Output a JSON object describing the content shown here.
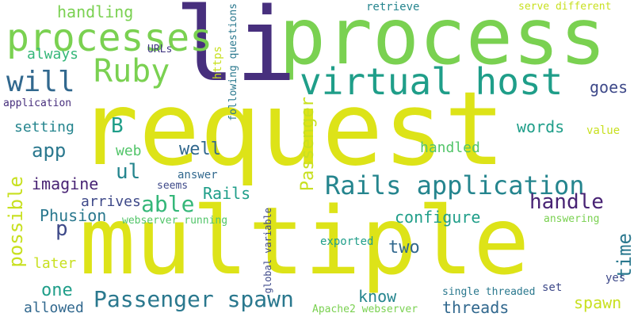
{
  "palette": {
    "lime": "#c8e020",
    "yellow": "#dde318",
    "green_light": "#7ad151",
    "green": "#52c569",
    "teal_green": "#35b779",
    "teal": "#1f9e89",
    "teal_blue": "#25858e",
    "blue": "#2a788e",
    "blue_dark": "#31688e",
    "indigo": "#3e4989",
    "purple": "#443983",
    "purple_dark": "#472f7d",
    "violet": "#482374"
  },
  "words": {
    "request": "request",
    "multiple": "multiple",
    "process": "process",
    "li": "li",
    "processes": "processes",
    "virtual_host": "virtual host",
    "ruby": "Ruby",
    "will": "will",
    "rails_application": "Rails application",
    "passenger_spawn": "Passenger spawn",
    "handling": "handling",
    "always": "always",
    "urls": "URLs",
    "application": "application",
    "https": "https",
    "following_questions": "following questions",
    "retrieve": "retrieve",
    "serve_different": "serve different",
    "goes": "goes",
    "words": "words",
    "value": "value",
    "setting": "setting",
    "b": "B",
    "app": "app",
    "web": "web",
    "well": "well",
    "handled": "handled",
    "ul": "ul",
    "answer": "answer",
    "imagine": "imagine",
    "seems": "seems",
    "rails": "Rails",
    "passenger_vertical": "Passenger",
    "able": "able",
    "arrives": "arrives",
    "possible": "possible",
    "phusion": "Phusion",
    "webserver_running": "webserver running",
    "handle": "handle",
    "configure": "configure",
    "answering": "answering",
    "p": "p",
    "global_variable": "global variable",
    "exported": "exported",
    "two": "two",
    "time": "time",
    "later": "later",
    "one": "one",
    "know": "know",
    "set": "set",
    "yes": "yes",
    "single_threaded": "single threaded",
    "threads": "threads",
    "spawn": "spawn",
    "allowed": "allowed",
    "apache2_webserver": "Apache2 webserver"
  }
}
